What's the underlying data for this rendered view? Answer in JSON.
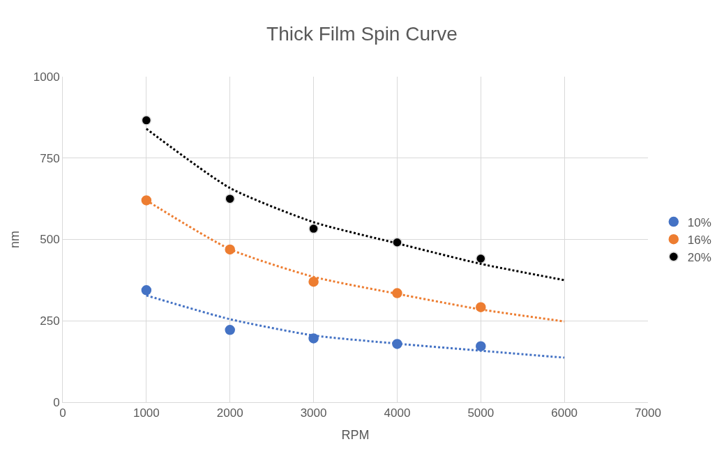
{
  "chart_data": {
    "type": "scatter",
    "title": "Thick Film Spin Curve",
    "xlabel": "RPM",
    "ylabel": "nm",
    "xlim": [
      0,
      7000
    ],
    "xticks": [
      0,
      1000,
      2000,
      3000,
      4000,
      5000,
      6000,
      7000
    ],
    "ylim": [
      0,
      1000
    ],
    "yticks": [
      0,
      250,
      500,
      750,
      1000
    ],
    "grid": true,
    "legend": "right",
    "marker": "circle",
    "series": [
      {
        "name": "10%",
        "color": "#4472c4",
        "x": [
          1000,
          2000,
          3000,
          4000,
          5000
        ],
        "values": [
          344,
          222,
          196,
          179,
          172
        ]
      },
      {
        "name": "16%",
        "color": "#ed7d31",
        "x": [
          1000,
          2000,
          3000,
          4000,
          5000
        ],
        "values": [
          620,
          469,
          370,
          335,
          292
        ]
      },
      {
        "name": "20%",
        "color": "#000000",
        "x": [
          1000,
          2000,
          3000,
          4000,
          5000
        ],
        "values": [
          866,
          625,
          533,
          491,
          441
        ]
      },
      {
        "color": "#4472c4",
        "type": "line",
        "line_style": "dotted",
        "marker": "none",
        "x": [
          1000,
          2000,
          3000,
          4000,
          5000,
          6000
        ],
        "values": [
          328,
          255,
          205,
          180,
          158,
          137
        ]
      },
      {
        "color": "#ed7d31",
        "type": "line",
        "line_style": "dotted",
        "marker": "none",
        "x": [
          1000,
          2000,
          3000,
          4000,
          5000,
          6000
        ],
        "values": [
          620,
          470,
          385,
          333,
          285,
          248
        ]
      },
      {
        "color": "#000000",
        "type": "line",
        "line_style": "dotted",
        "marker": "none",
        "x": [
          1000,
          2000,
          3000,
          4000,
          5000,
          6000
        ],
        "values": [
          840,
          658,
          553,
          488,
          425,
          375
        ]
      }
    ]
  }
}
